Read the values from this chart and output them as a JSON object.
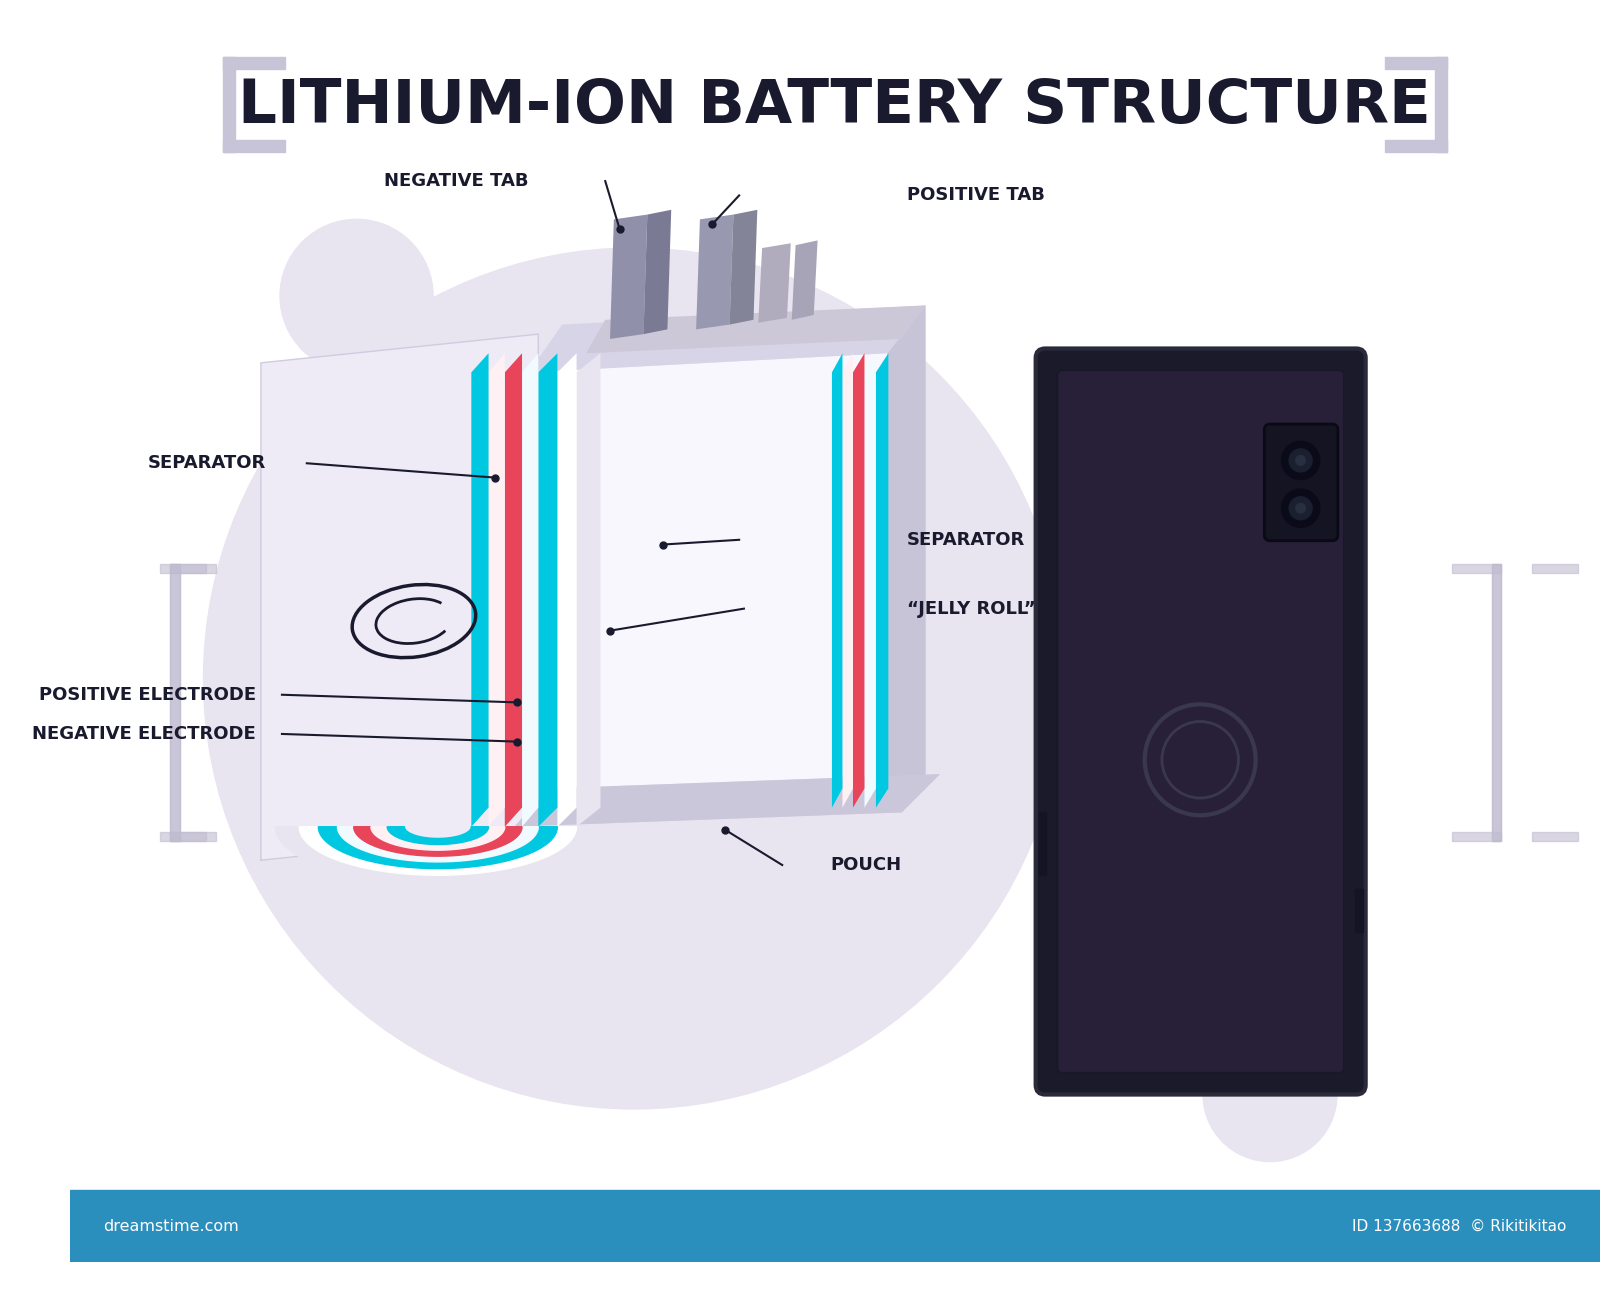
{
  "title": "LITHIUM-ION BATTERY STRUCTURE",
  "title_color": "#1a1a2e",
  "bg_color": "#ffffff",
  "footer_color": "#2b8fbe",
  "footer_text_left": "dreamstime.com",
  "footer_text_right": "ID 137663688  © Rikitikitao",
  "circle_color": "#e8e4f0",
  "bracket_color": "#c8c4d8",
  "label_neg_tab": "NEGATIVE TAB",
  "label_pos_tab": "POSITIVE TAB",
  "label_sep_left": "SEPARATOR",
  "label_sep_right": "SEPARATOR",
  "label_jelly": "“JELLY ROLL”",
  "label_pos_elec": "POSITIVE ELECTRODE",
  "label_neg_elec": "NEGATIVE ELECTRODE",
  "label_pouch": "POUCH",
  "label_color": "#1a1a2e",
  "cyan_color": "#00c8e0",
  "red_color": "#e8445a",
  "tab_gray": "#8a8aaa",
  "tab_light": "#a8a4be",
  "pouch_color": "#b8b0c8",
  "beige_color": "#d4c8b8",
  "phone_dark": "#1a1a2a",
  "phone_screen": "#282038"
}
